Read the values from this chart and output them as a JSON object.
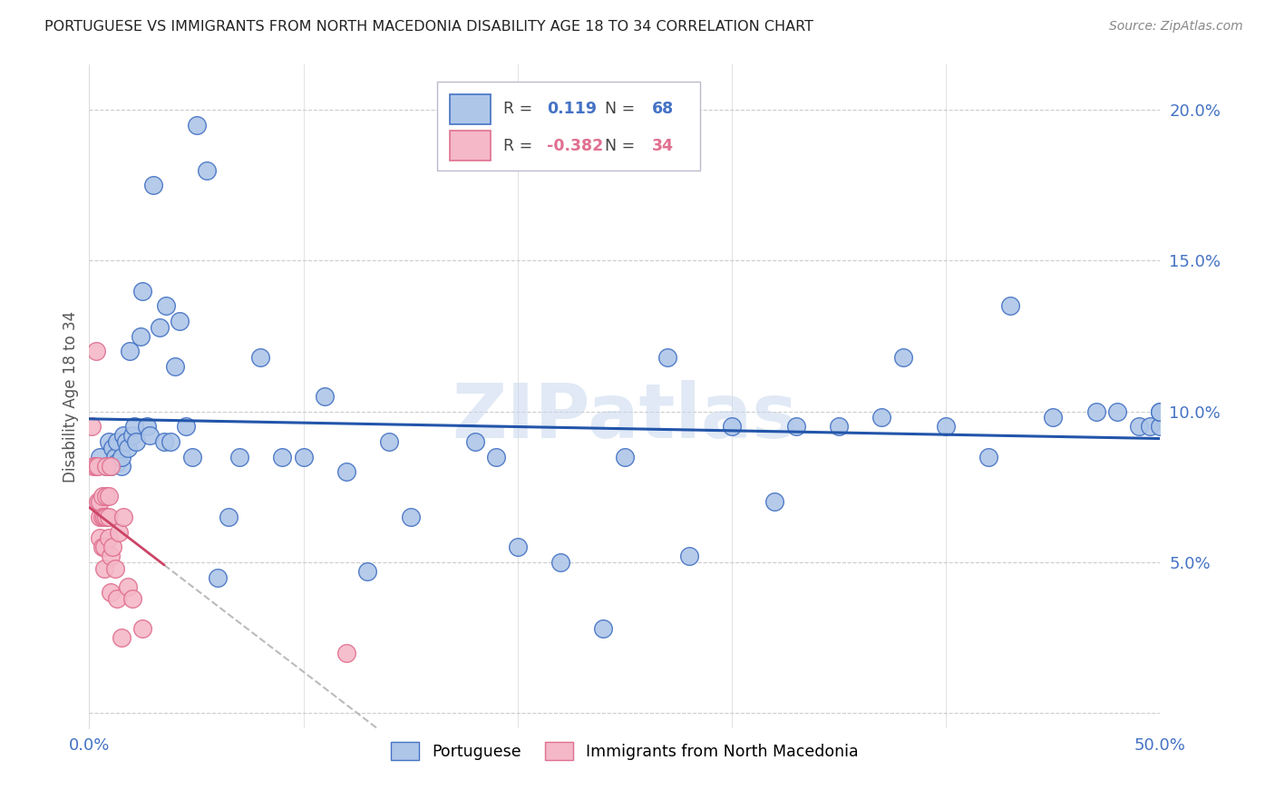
{
  "title": "PORTUGUESE VS IMMIGRANTS FROM NORTH MACEDONIA DISABILITY AGE 18 TO 34 CORRELATION CHART",
  "source": "Source: ZipAtlas.com",
  "ylabel": "Disability Age 18 to 34",
  "xlim": [
    0.0,
    0.5
  ],
  "ylim": [
    -0.005,
    0.215
  ],
  "yticks": [
    0.0,
    0.05,
    0.1,
    0.15,
    0.2
  ],
  "ytick_labels": [
    "",
    "5.0%",
    "10.0%",
    "15.0%",
    "20.0%"
  ],
  "xticks": [
    0.0,
    0.1,
    0.2,
    0.3,
    0.4,
    0.5
  ],
  "xtick_labels": [
    "0.0%",
    "",
    "",
    "",
    "",
    "50.0%"
  ],
  "portuguese_color": "#aec6e8",
  "portuguese_edge_color": "#4472c4",
  "immigrant_color": "#f4b8c8",
  "immigrant_edge_color": "#e07090",
  "trend_blue": "#2255aa",
  "trend_pink": "#cc4466",
  "r_portuguese": "0.119",
  "n_portuguese": "68",
  "r_immigrant": "-0.382",
  "n_immigrant": "34",
  "watermark": "ZIPatlas",
  "portuguese_x": [
    0.005,
    0.008,
    0.009,
    0.01,
    0.011,
    0.012,
    0.013,
    0.013,
    0.015,
    0.015,
    0.016,
    0.017,
    0.018,
    0.019,
    0.02,
    0.021,
    0.022,
    0.024,
    0.025,
    0.027,
    0.028,
    0.03,
    0.033,
    0.035,
    0.036,
    0.038,
    0.04,
    0.042,
    0.045,
    0.048,
    0.05,
    0.055,
    0.06,
    0.065,
    0.07,
    0.08,
    0.09,
    0.1,
    0.11,
    0.12,
    0.13,
    0.14,
    0.15,
    0.18,
    0.19,
    0.2,
    0.22,
    0.24,
    0.25,
    0.27,
    0.28,
    0.3,
    0.32,
    0.33,
    0.35,
    0.37,
    0.38,
    0.4,
    0.42,
    0.43,
    0.45,
    0.47,
    0.48,
    0.49,
    0.495,
    0.5,
    0.5,
    0.5
  ],
  "portuguese_y": [
    0.085,
    0.082,
    0.09,
    0.082,
    0.088,
    0.085,
    0.09,
    0.083,
    0.082,
    0.085,
    0.092,
    0.09,
    0.088,
    0.12,
    0.092,
    0.095,
    0.09,
    0.125,
    0.14,
    0.095,
    0.092,
    0.175,
    0.128,
    0.09,
    0.135,
    0.09,
    0.115,
    0.13,
    0.095,
    0.085,
    0.195,
    0.18,
    0.045,
    0.065,
    0.085,
    0.118,
    0.085,
    0.085,
    0.105,
    0.08,
    0.047,
    0.09,
    0.065,
    0.09,
    0.085,
    0.055,
    0.05,
    0.028,
    0.085,
    0.118,
    0.052,
    0.095,
    0.07,
    0.095,
    0.095,
    0.098,
    0.118,
    0.095,
    0.085,
    0.135,
    0.098,
    0.1,
    0.1,
    0.095,
    0.095,
    0.095,
    0.1,
    0.1
  ],
  "immigrant_x": [
    0.001,
    0.002,
    0.003,
    0.003,
    0.004,
    0.004,
    0.005,
    0.005,
    0.005,
    0.006,
    0.006,
    0.006,
    0.007,
    0.007,
    0.007,
    0.008,
    0.008,
    0.008,
    0.009,
    0.009,
    0.009,
    0.01,
    0.01,
    0.01,
    0.011,
    0.012,
    0.013,
    0.014,
    0.015,
    0.016,
    0.018,
    0.02,
    0.025,
    0.12
  ],
  "immigrant_y": [
    0.095,
    0.082,
    0.12,
    0.082,
    0.082,
    0.07,
    0.065,
    0.07,
    0.058,
    0.072,
    0.065,
    0.055,
    0.065,
    0.055,
    0.048,
    0.082,
    0.072,
    0.065,
    0.072,
    0.065,
    0.058,
    0.082,
    0.052,
    0.04,
    0.055,
    0.048,
    0.038,
    0.06,
    0.025,
    0.065,
    0.042,
    0.038,
    0.028,
    0.02
  ]
}
